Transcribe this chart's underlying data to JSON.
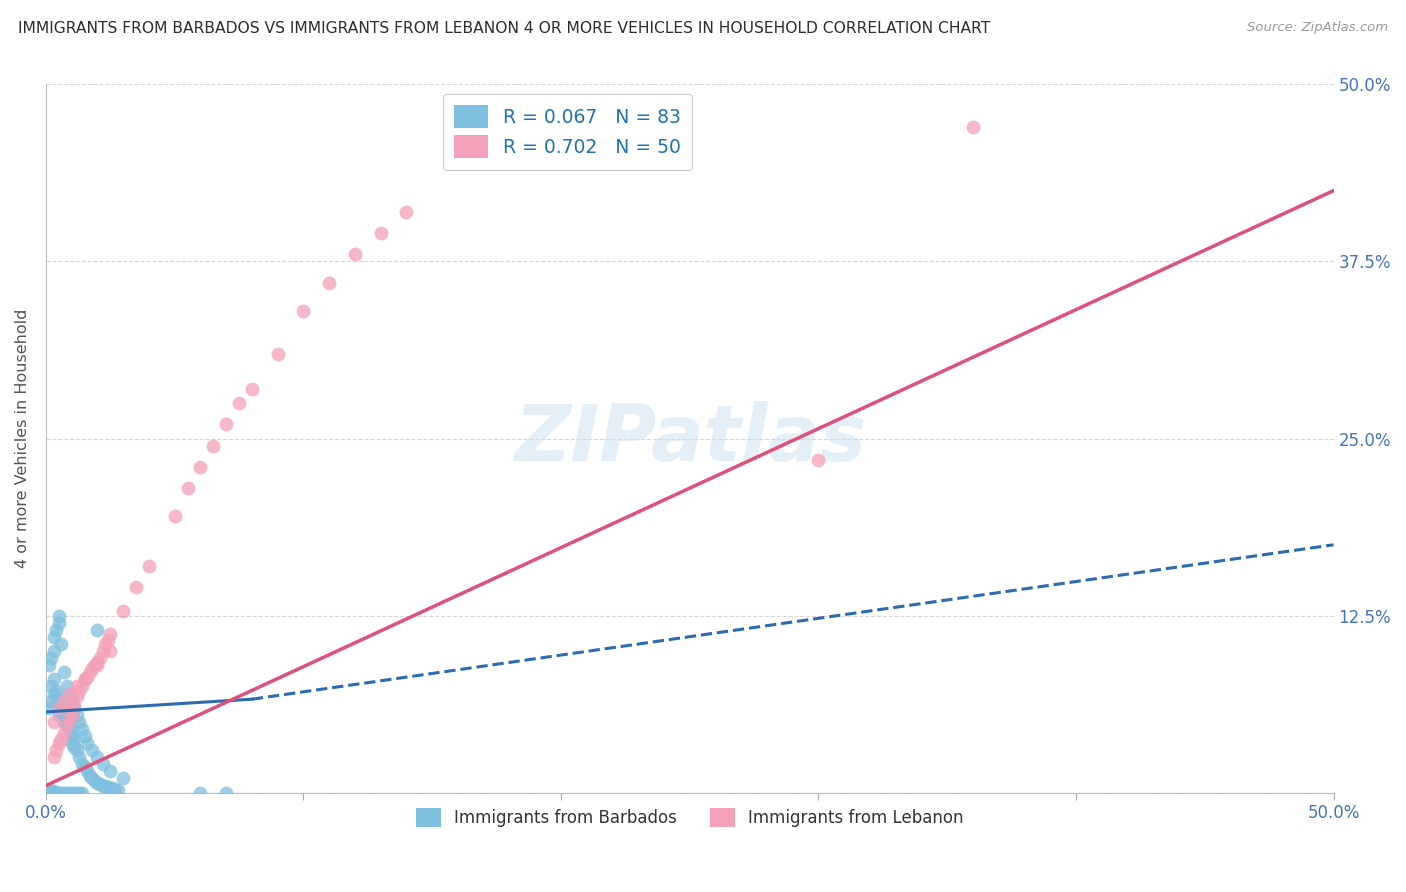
{
  "title": "IMMIGRANTS FROM BARBADOS VS IMMIGRANTS FROM LEBANON 4 OR MORE VEHICLES IN HOUSEHOLD CORRELATION CHART",
  "source": "Source: ZipAtlas.com",
  "ylabel": "4 or more Vehicles in Household",
  "xlim": [
    0.0,
    0.5
  ],
  "ylim": [
    0.0,
    0.5
  ],
  "yticks": [
    0.0,
    0.125,
    0.25,
    0.375,
    0.5
  ],
  "ytick_labels_right": [
    "",
    "12.5%",
    "25.0%",
    "37.5%",
    "50.0%"
  ],
  "xtick_positions": [
    0.0,
    0.1,
    0.2,
    0.3,
    0.4,
    0.5
  ],
  "xtick_labels": [
    "0.0%",
    "",
    "",
    "",
    "",
    "50.0%"
  ],
  "watermark": "ZIPatlas",
  "legend_entry1": "R = 0.067   N = 83",
  "legend_entry2": "R = 0.702   N = 50",
  "legend_label1": "Immigrants from Barbados",
  "legend_label2": "Immigrants from Lebanon",
  "barbados_color": "#7fbfdf",
  "lebanon_color": "#f4a0b8",
  "barbados_line_color": "#2b6cb0",
  "lebanon_line_color": "#e0507a",
  "background_color": "#ffffff",
  "grid_color": "#cccccc",
  "title_color": "#2d2d2d",
  "axis_label_color": "#4472c4",
  "barbados_x": [
    0.001,
    0.002,
    0.002,
    0.003,
    0.003,
    0.004,
    0.004,
    0.005,
    0.005,
    0.005,
    0.006,
    0.006,
    0.007,
    0.007,
    0.008,
    0.008,
    0.009,
    0.009,
    0.01,
    0.01,
    0.01,
    0.011,
    0.011,
    0.012,
    0.013,
    0.014,
    0.015,
    0.016,
    0.017,
    0.018,
    0.019,
    0.02,
    0.021,
    0.022,
    0.023,
    0.024,
    0.025,
    0.026,
    0.027,
    0.028,
    0.001,
    0.002,
    0.003,
    0.003,
    0.004,
    0.005,
    0.006,
    0.007,
    0.008,
    0.009,
    0.01,
    0.011,
    0.012,
    0.013,
    0.014,
    0.015,
    0.016,
    0.018,
    0.02,
    0.022,
    0.025,
    0.03,
    0.001,
    0.001,
    0.002,
    0.002,
    0.003,
    0.003,
    0.004,
    0.005,
    0.006,
    0.007,
    0.008,
    0.009,
    0.01,
    0.011,
    0.012,
    0.013,
    0.014,
    0.06,
    0.07,
    0.005,
    0.02
  ],
  "barbados_y": [
    0.06,
    0.065,
    0.075,
    0.07,
    0.08,
    0.068,
    0.072,
    0.06,
    0.055,
    0.065,
    0.058,
    0.062,
    0.05,
    0.055,
    0.048,
    0.052,
    0.045,
    0.05,
    0.04,
    0.045,
    0.035,
    0.038,
    0.032,
    0.03,
    0.025,
    0.02,
    0.018,
    0.015,
    0.012,
    0.01,
    0.008,
    0.007,
    0.006,
    0.005,
    0.005,
    0.004,
    0.003,
    0.003,
    0.002,
    0.002,
    0.09,
    0.095,
    0.1,
    0.11,
    0.115,
    0.12,
    0.105,
    0.085,
    0.075,
    0.07,
    0.065,
    0.06,
    0.055,
    0.05,
    0.045,
    0.04,
    0.035,
    0.03,
    0.025,
    0.02,
    0.015,
    0.01,
    0.0,
    0.002,
    0.0,
    0.001,
    0.0,
    0.001,
    0.0,
    0.0,
    0.0,
    0.0,
    0.0,
    0.0,
    0.0,
    0.0,
    0.0,
    0.0,
    0.0,
    0.0,
    0.0,
    0.125,
    0.115
  ],
  "lebanon_x": [
    0.003,
    0.004,
    0.005,
    0.006,
    0.007,
    0.008,
    0.009,
    0.01,
    0.01,
    0.011,
    0.012,
    0.013,
    0.014,
    0.015,
    0.016,
    0.017,
    0.018,
    0.019,
    0.02,
    0.021,
    0.022,
    0.023,
    0.024,
    0.025,
    0.03,
    0.035,
    0.04,
    0.05,
    0.055,
    0.06,
    0.065,
    0.07,
    0.075,
    0.08,
    0.09,
    0.1,
    0.11,
    0.12,
    0.13,
    0.14,
    0.003,
    0.005,
    0.007,
    0.009,
    0.012,
    0.015,
    0.02,
    0.025,
    0.36,
    0.3
  ],
  "lebanon_y": [
    0.025,
    0.03,
    0.035,
    0.038,
    0.042,
    0.048,
    0.052,
    0.055,
    0.06,
    0.062,
    0.068,
    0.072,
    0.075,
    0.08,
    0.082,
    0.085,
    0.088,
    0.09,
    0.092,
    0.095,
    0.1,
    0.105,
    0.108,
    0.112,
    0.128,
    0.145,
    0.16,
    0.195,
    0.215,
    0.23,
    0.245,
    0.26,
    0.275,
    0.285,
    0.31,
    0.34,
    0.36,
    0.38,
    0.395,
    0.41,
    0.05,
    0.06,
    0.065,
    0.07,
    0.075,
    0.08,
    0.09,
    0.1,
    0.47,
    0.235
  ],
  "barbados_line_x0": 0.0,
  "barbados_line_x_solid_end": 0.08,
  "barbados_line_x1": 0.5,
  "barbados_line_y0": 0.057,
  "barbados_line_y_solid_end": 0.066,
  "barbados_line_y1": 0.175,
  "lebanon_line_x0": 0.0,
  "lebanon_line_x1": 0.5,
  "lebanon_line_y0": 0.005,
  "lebanon_line_y1": 0.425
}
